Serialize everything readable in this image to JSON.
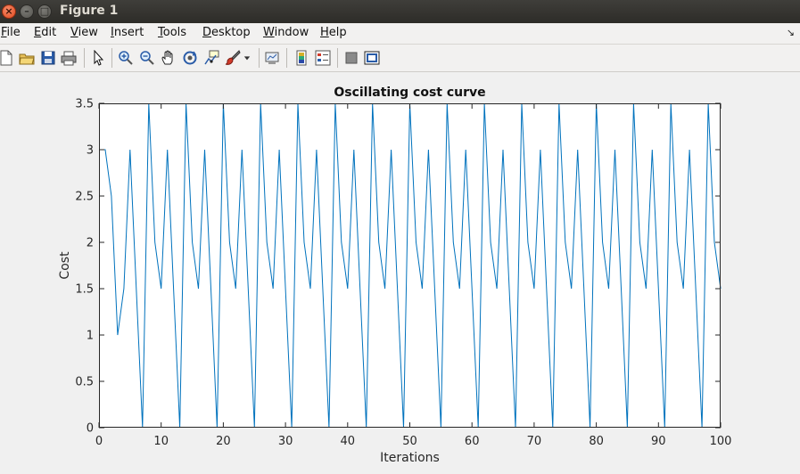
{
  "window": {
    "title": "Figure 1"
  },
  "menu": {
    "items": [
      {
        "label": "File",
        "u": "F",
        "rest": "ile"
      },
      {
        "label": "Edit",
        "u": "E",
        "rest": "dit"
      },
      {
        "label": "View",
        "u": "V",
        "rest": "iew"
      },
      {
        "label": "Insert",
        "u": "I",
        "rest": "nsert"
      },
      {
        "label": "Tools",
        "u": "T",
        "rest": "ools"
      },
      {
        "label": "Desktop",
        "u": "D",
        "rest": "esktop"
      },
      {
        "label": "Window",
        "u": "W",
        "rest": "indow"
      },
      {
        "label": "Help",
        "u": "H",
        "rest": "elp"
      }
    ]
  },
  "toolbar": {
    "tools": [
      "new-figure-icon",
      "open-file-icon",
      "save-icon",
      "print-icon",
      "pointer-icon",
      "zoom-in-icon",
      "zoom-out-icon",
      "pan-icon",
      "rotate-3d-icon",
      "data-cursor-icon",
      "brush-icon",
      "dropdown-arrow-icon",
      "link-plot-icon",
      "colorbar-icon",
      "legend-icon",
      "hide-plot-tools-icon",
      "show-plot-tools-icon"
    ]
  },
  "colors": {
    "line": "#0072bd",
    "axes": "#262626",
    "window_title_bar": "#33322e"
  },
  "chart_data": {
    "type": "line",
    "title": "Oscillating cost curve",
    "xlabel": "Iterations",
    "ylabel": "Cost",
    "xlim": [
      0,
      100
    ],
    "ylim": [
      0,
      3.5
    ],
    "xticks": [
      "0",
      "10",
      "20",
      "30",
      "40",
      "50",
      "60",
      "70",
      "80",
      "90",
      "100"
    ],
    "yticks": [
      "0",
      "0.5",
      "1",
      "1.5",
      "2",
      "2.5",
      "3",
      "3.5"
    ],
    "grid": false,
    "series": [
      {
        "x": [
          0,
          1,
          2,
          3,
          4,
          5,
          6,
          7,
          8,
          9,
          10,
          11,
          12,
          13,
          14,
          15,
          16,
          17,
          18,
          19,
          20,
          21,
          22,
          23,
          24,
          25,
          26,
          27,
          28,
          29,
          30,
          31,
          32,
          33,
          34,
          35,
          36,
          37,
          38,
          39,
          40,
          41,
          42,
          43,
          44,
          45,
          46,
          47,
          48,
          49,
          50,
          51,
          52,
          53,
          54,
          55,
          56,
          57,
          58,
          59,
          60,
          61,
          62,
          63,
          64,
          65,
          66,
          67,
          68,
          69,
          70,
          71,
          72,
          73,
          74,
          75,
          76,
          77,
          78,
          79,
          80,
          81,
          82,
          83,
          84,
          85,
          86,
          87,
          88,
          89,
          90,
          91,
          92,
          93,
          94,
          95,
          96,
          97,
          98,
          99,
          100
        ],
        "y": [
          3,
          3,
          2.5,
          1,
          1.5,
          3,
          1.5,
          0,
          3.5,
          2,
          1.5,
          3,
          1.5,
          0,
          3.5,
          2,
          1.5,
          3,
          1.5,
          0,
          3.5,
          2,
          1.5,
          3,
          1.5,
          0,
          3.5,
          2,
          1.5,
          3,
          1.5,
          0,
          3.5,
          2,
          1.5,
          3,
          1.5,
          0,
          3.5,
          2,
          1.5,
          3,
          1.5,
          0,
          3.5,
          2,
          1.5,
          3,
          1.5,
          0,
          3.5,
          2,
          1.5,
          3,
          1.5,
          0,
          3.5,
          2,
          1.5,
          3,
          1.5,
          0,
          3.5,
          2,
          1.5,
          3,
          1.5,
          0,
          3.5,
          2,
          1.5,
          3,
          1.5,
          0,
          3.5,
          2,
          1.5,
          3,
          1.5,
          0,
          3.5,
          2,
          1.5,
          3,
          1.5,
          0,
          3.5,
          2,
          1.5,
          3,
          1.5,
          0,
          3.5,
          2,
          1.5,
          3,
          1.5,
          0,
          3.5,
          2,
          1.5
        ]
      }
    ]
  }
}
